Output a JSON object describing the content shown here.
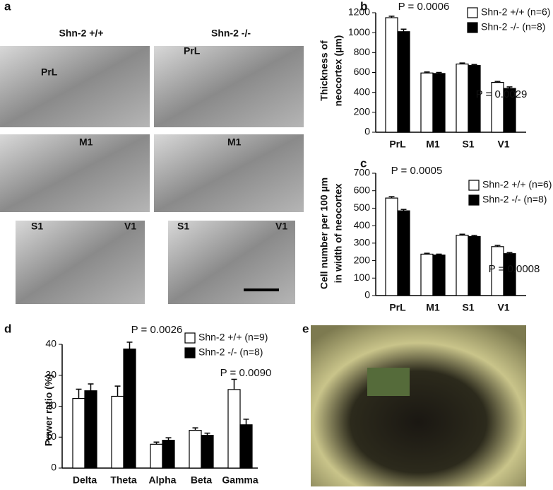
{
  "panel_a": {
    "label": "a",
    "columns": [
      "Shn-2 +/+",
      "Shn-2 -/-"
    ],
    "regions": [
      "PrL",
      "PrL",
      "M1",
      "M1",
      "S1",
      "V1",
      "S1",
      "V1"
    ]
  },
  "panel_e": {
    "label": "e"
  },
  "chart_data": [
    {
      "type": "bar",
      "panel_label": "b",
      "ylabel": [
        "Thickness of",
        "neocortex (µm)"
      ],
      "categories": [
        "PrL",
        "M1",
        "S1",
        "V1"
      ],
      "series": [
        {
          "name": "Shn-2 +/+ (n=6)",
          "color": "#ffffff",
          "values": [
            1150,
            595,
            685,
            500
          ],
          "errors": [
            15,
            10,
            10,
            10
          ]
        },
        {
          "name": "Shn-2 -/- (n=8)",
          "color": "#000000",
          "values": [
            1010,
            590,
            670,
            440
          ],
          "errors": [
            25,
            10,
            10,
            15
          ]
        }
      ],
      "ylim": [
        0,
        1200
      ],
      "yticks": [
        0,
        200,
        400,
        600,
        800,
        1000,
        1200
      ],
      "annotations": [
        "P = 0.0006",
        "P = 0.0029"
      ]
    },
    {
      "type": "bar",
      "panel_label": "c",
      "ylabel": [
        "Cell number per 100 µm",
        "in width of neocortex"
      ],
      "categories": [
        "PrL",
        "M1",
        "S1",
        "V1"
      ],
      "series": [
        {
          "name": "Shn-2 +/+ (n=6)",
          "color": "#ffffff",
          "values": [
            558,
            237,
            345,
            280
          ],
          "errors": [
            8,
            5,
            6,
            7
          ]
        },
        {
          "name": "Shn-2 -/- (n=8)",
          "color": "#000000",
          "values": [
            485,
            232,
            338,
            240
          ],
          "errors": [
            8,
            5,
            6,
            6
          ]
        }
      ],
      "ylim": [
        0,
        700
      ],
      "yticks": [
        0,
        100,
        200,
        300,
        400,
        500,
        600,
        700
      ],
      "annotations": [
        "P = 0.0005",
        "P = 0.0008"
      ]
    },
    {
      "type": "bar",
      "panel_label": "d",
      "ylabel": [
        "Power ratio (%)"
      ],
      "categories": [
        "Delta",
        "Theta",
        "Alpha",
        "Beta",
        "Gamma"
      ],
      "series": [
        {
          "name": "Shn-2 +/+ (n=9)",
          "color": "#ffffff",
          "values": [
            22.5,
            23.2,
            7.7,
            12.2,
            25.4
          ],
          "errors": [
            3,
            3.3,
            0.7,
            0.8,
            3.3
          ]
        },
        {
          "name": "Shn-2 -/- (n=8)",
          "color": "#000000",
          "values": [
            25,
            38.5,
            9,
            10.6,
            14
          ],
          "errors": [
            2.2,
            2.2,
            0.8,
            0.7,
            1.8
          ]
        }
      ],
      "ylim": [
        0,
        40
      ],
      "yticks": [
        0,
        10,
        20,
        30,
        40
      ],
      "annotations": [
        "P = 0.0026",
        "P = 0.0090"
      ]
    }
  ]
}
